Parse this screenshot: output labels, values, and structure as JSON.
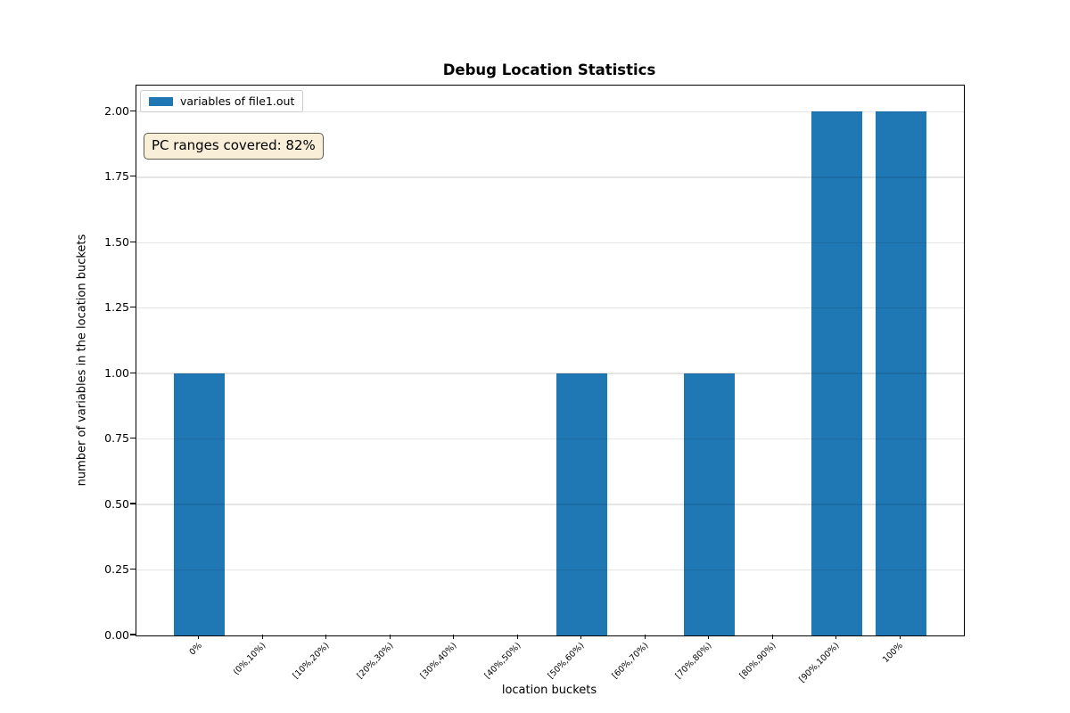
{
  "chart_data": {
    "type": "bar",
    "title": "Debug Location Statistics",
    "categories": [
      "0%",
      "(0%,10%)",
      "[10%,20%)",
      "[20%,30%)",
      "[30%,40%)",
      "[40%,50%)",
      "[50%,60%)",
      "[60%,70%)",
      "[70%,80%)",
      "[80%,90%)",
      "[90%,100%)",
      "100%"
    ],
    "series": [
      {
        "name": "variables of file1.out",
        "values": [
          1,
          0,
          0,
          0,
          0,
          0,
          1,
          0,
          1,
          0,
          2,
          2
        ],
        "color": "#1f77b4"
      }
    ],
    "xlabel": "location buckets",
    "ylabel": "number of variables in the location buckets",
    "ylim": [
      0,
      2.1
    ],
    "yticks": [
      "0.00",
      "0.25",
      "0.50",
      "0.75",
      "1.00",
      "1.25",
      "1.50",
      "1.75",
      "2.00"
    ],
    "grid": "horizontal, light gray, drawn above bars",
    "legend_position": "upper left",
    "annotations": [
      {
        "text": "PC ranges covered: 82%",
        "facecolor": "#f9efd8",
        "edgecolor": "#5f5c4e"
      }
    ]
  },
  "colors": {
    "bar": "#1f77b4",
    "grid": "rgba(0,0,0,0.10)",
    "axes_frame": "#000000",
    "text": "#000000"
  }
}
